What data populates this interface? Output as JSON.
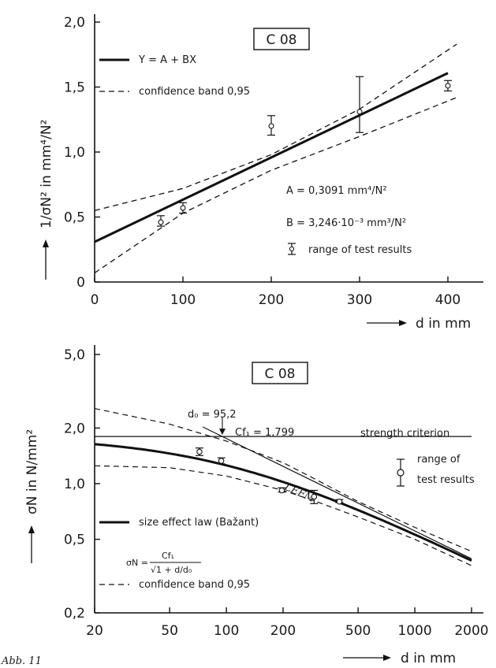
{
  "caption": "Abb. 11",
  "chart_data": [
    {
      "type": "scatter",
      "panel_label": "C 08",
      "xlabel": "d in mm",
      "ylabel": "1/σN² in mm⁴/N²",
      "xlim": [
        0,
        400
      ],
      "ylim": [
        0,
        2.0
      ],
      "x_ticks": [
        "0",
        "100",
        "200",
        "300",
        "400"
      ],
      "y_ticks": [
        "0",
        "0,5",
        "1,0",
        "1,5",
        "2,0"
      ],
      "legend": {
        "fit_label": "Y = A + BX",
        "band_label": "confidence  band 0,95",
        "range_label": "range of test results"
      },
      "annotations": {
        "A": "A = 0,3091 mm⁴/N²",
        "B": "B = 3,246·10⁻³ mm³/N²"
      },
      "fit": {
        "A": 0.3091,
        "B": 0.003246
      },
      "band": {
        "upper": [
          [
            0,
            0.55
          ],
          [
            100,
            0.72
          ],
          [
            200,
            0.98
          ],
          [
            300,
            1.33
          ],
          [
            410,
            1.83
          ]
        ],
        "lower": [
          [
            0,
            0.07
          ],
          [
            100,
            0.53
          ],
          [
            200,
            0.86
          ],
          [
            300,
            1.12
          ],
          [
            410,
            1.42
          ]
        ]
      },
      "points": [
        {
          "x": 75,
          "y": 0.46,
          "lo": 0.43,
          "hi": 0.51
        },
        {
          "x": 100,
          "y": 0.57,
          "lo": 0.53,
          "hi": 0.61
        },
        {
          "x": 200,
          "y": 1.2,
          "lo": 1.13,
          "hi": 1.28
        },
        {
          "x": 300,
          "y": 1.31,
          "lo": 1.15,
          "hi": 1.58
        },
        {
          "x": 400,
          "y": 1.51,
          "lo": 1.47,
          "hi": 1.55
        }
      ]
    },
    {
      "type": "line",
      "scale": "log-log",
      "panel_label": "C 08",
      "xlabel": "d in mm",
      "ylabel": "σN in N/mm²",
      "xlim": [
        20,
        2000
      ],
      "ylim": [
        0.2,
        5.0
      ],
      "x_ticks": [
        {
          "v": 20,
          "label": "20"
        },
        {
          "v": 50,
          "label": "50"
        },
        {
          "v": 100,
          "label": "100"
        },
        {
          "v": 200,
          "label": "200"
        },
        {
          "v": 500,
          "label": "500"
        },
        {
          "v": 1000,
          "label": "1000"
        },
        {
          "v": 2000,
          "label": "2000"
        }
      ],
      "y_ticks": [
        {
          "v": 0.2,
          "label": "0,2"
        },
        {
          "v": 0.5,
          "label": "0,5"
        },
        {
          "v": 1.0,
          "label": "1,0"
        },
        {
          "v": 2.0,
          "label": "2,0"
        },
        {
          "v": 5.0,
          "label": "5,0"
        }
      ],
      "labels": {
        "d0": "d₀ = 95,2",
        "cft": "Cf₁ = 1,799",
        "strength": "strength criterion",
        "lefm": "LEFM",
        "range1": "range of",
        "range2": "test results",
        "size_law": "size effect law (Bažant)",
        "formula_lhs": "σN =",
        "formula_num": "Cf₁",
        "formula_den": "√1 + d/d₀",
        "band_label": "confidence  band 0,95"
      },
      "params": {
        "cft": 1.799,
        "d0": 95.2
      },
      "band": {
        "upper": [
          [
            20,
            2.55
          ],
          [
            50,
            2.1
          ],
          [
            100,
            1.7
          ],
          [
            200,
            1.3
          ],
          [
            300,
            1.05
          ],
          [
            500,
            0.8
          ],
          [
            1000,
            0.58
          ],
          [
            2000,
            0.43
          ]
        ],
        "lower": [
          [
            20,
            1.25
          ],
          [
            50,
            1.22
          ],
          [
            100,
            1.1
          ],
          [
            200,
            0.92
          ],
          [
            300,
            0.8
          ],
          [
            500,
            0.66
          ],
          [
            1000,
            0.5
          ],
          [
            2000,
            0.36
          ]
        ]
      },
      "points": [
        {
          "x": 72,
          "y": 1.49,
          "lo": 1.42,
          "hi": 1.56
        },
        {
          "x": 94,
          "y": 1.33,
          "lo": 1.28,
          "hi": 1.38
        },
        {
          "x": 197,
          "y": 0.92,
          "lo": 0.9,
          "hi": 0.95
        },
        {
          "x": 292,
          "y": 0.85,
          "lo": 0.78,
          "hi": 0.92
        },
        {
          "x": 398,
          "y": 0.8,
          "lo": 0.79,
          "hi": 0.82
        }
      ]
    }
  ]
}
